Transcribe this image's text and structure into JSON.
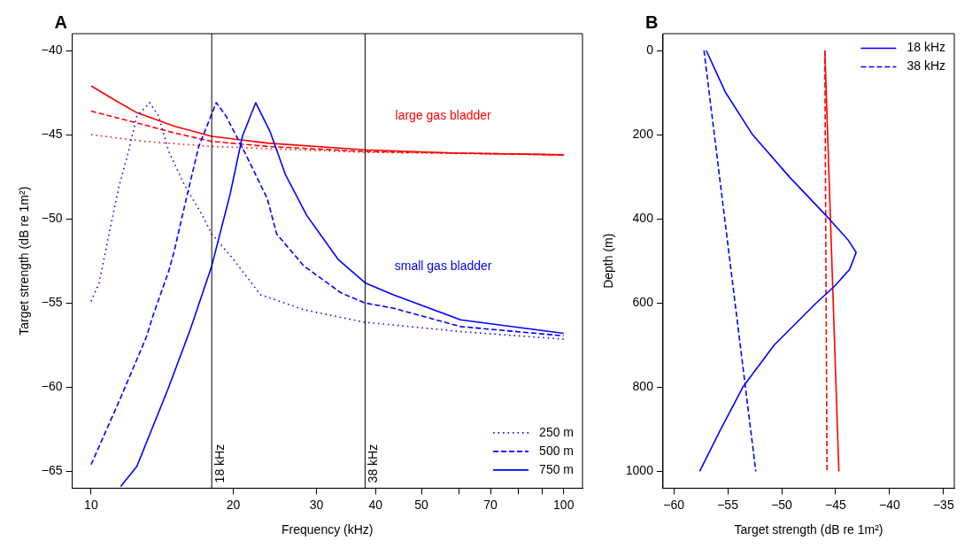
{
  "chart_data": [
    {
      "type": "line",
      "title": "A",
      "xlabel": "Frequency (kHz)",
      "ylabel": "Target strength (dB re 1m²)",
      "log": "x",
      "xlim": [
        9.12,
        109.6
      ],
      "xticks": [
        10,
        20,
        30,
        40,
        50,
        {
          "value": 60,
          "label": null
        },
        70,
        {
          "value": 80,
          "label": null
        },
        {
          "value": 90,
          "label": null
        },
        100
      ],
      "ylim": [
        -66,
        -39
      ],
      "yticks": [
        -65,
        -60,
        -55,
        -50,
        -45,
        -40
      ],
      "grid": false,
      "legend": "bottom right",
      "ref_lines": [
        {
          "axis": "x",
          "value": 18,
          "label": "18 kHz",
          "color": "#000000"
        },
        {
          "axis": "x",
          "value": 38,
          "label": "38 kHz",
          "color": "#000000"
        }
      ],
      "annotations": [
        "large gas bladder",
        "small gas bladder"
      ],
      "series": [
        {
          "name": "250 m",
          "color": "#0000ff",
          "line_style": "dotted",
          "x": [
            10,
            10.4,
            10.95,
            11.45,
            12.0,
            12.5,
            13.3,
            13.9,
            14.6,
            15.7,
            17.2,
            18,
            20,
            22.8,
            28.2,
            38,
            43.5,
            60.5,
            100
          ],
          "values": [
            -54.9,
            -53.8,
            -50.7,
            -48.1,
            -46,
            -43.9,
            -43.1,
            -43.9,
            -46,
            -47.9,
            -49.8,
            -50.9,
            -52.4,
            -54.5,
            -55.4,
            -56.15,
            -56.3,
            -56.7,
            -57.15
          ]
        },
        {
          "name": "500 m",
          "color": "#0000ff",
          "line_style": "dashed",
          "x": [
            10,
            11.6,
            13.1,
            13.5,
            14.6,
            15.0,
            15.9,
            16.9,
            18.4,
            19.3,
            21.1,
            23.6,
            24.7,
            28.2,
            33.8,
            38,
            43.5,
            60.5,
            100
          ],
          "values": [
            -64.6,
            -60.5,
            -57.0,
            -55.8,
            -53.1,
            -51.9,
            -48.8,
            -45.7,
            -43.1,
            -43.9,
            -46,
            -48.8,
            -50.9,
            -52.8,
            -54.4,
            -55.0,
            -55.3,
            -56.4,
            -56.95
          ]
        },
        {
          "name": "750 m",
          "color": "#0000ff",
          "line_style": "solid",
          "x": [
            11.55,
            12.5,
            14.55,
            16.2,
            18,
            19.7,
            20.9,
            22.3,
            23.9,
            25.8,
            28.6,
            33.3,
            38,
            43.5,
            60.5,
            100
          ],
          "values": [
            -65.9,
            -64.7,
            -60.1,
            -56.6,
            -52.8,
            -48.5,
            -45.1,
            -43.1,
            -44.8,
            -47.4,
            -49.8,
            -52.4,
            -53.8,
            -54.5,
            -56.0,
            -56.8
          ]
        },
        {
          "color": "#ff0000",
          "line_style": "dotted",
          "x": [
            10,
            13,
            18,
            38,
            100
          ],
          "values": [
            -45.0,
            -45.4,
            -45.7,
            -46.05,
            -46.2
          ]
        },
        {
          "color": "#ff0000",
          "line_style": "dashed",
          "x": [
            10,
            12.5,
            15,
            18,
            23.6,
            38,
            100
          ],
          "values": [
            -43.6,
            -44.3,
            -44.9,
            -45.4,
            -45.7,
            -46.0,
            -46.2
          ]
        },
        {
          "color": "#ff0000",
          "line_style": "solid",
          "x": [
            10,
            11,
            12.5,
            15,
            18,
            23.6,
            38,
            60,
            100
          ],
          "values": [
            -42.1,
            -42.8,
            -43.7,
            -44.5,
            -45.1,
            -45.5,
            -45.9,
            -46.1,
            -46.2
          ]
        }
      ]
    },
    {
      "type": "line",
      "title": "B",
      "xlabel": "Target strength (dB re 1m²)",
      "ylabel": "Depth (m)",
      "xlim": [
        -61,
        -34
      ],
      "xticks": [
        -60,
        -55,
        -50,
        -45,
        -40,
        -35
      ],
      "ylim": [
        1040,
        -40
      ],
      "yticks": [
        0,
        200,
        400,
        600,
        800,
        1000
      ],
      "grid": false,
      "legend": "top right",
      "series": [
        {
          "name": "18 kHz",
          "color": "#0000ff",
          "line_style": "solid",
          "x": [
            -56.99,
            -55.2,
            -52.7,
            -49.3,
            -45.6,
            -43.85,
            -43.1,
            -43.7,
            -45.1,
            -46.8,
            -50.7,
            -53.6,
            -55.65,
            -57.6
          ],
          "values": [
            0,
            100,
            200,
            300,
            400,
            450,
            480,
            520,
            560,
            600,
            700,
            800,
            900,
            1000
          ]
        },
        {
          "name": "38 kHz",
          "color": "#0000ff",
          "line_style": "dashed",
          "x": [
            -57.2,
            -54.8,
            -52.4
          ],
          "values": [
            0,
            500,
            1000
          ]
        },
        {
          "color": "#ff0000",
          "line_style": "solid",
          "x": [
            -46.0,
            -44.7
          ],
          "values": [
            0,
            1000
          ]
        },
        {
          "color": "#ff0000",
          "line_style": "dashed",
          "x": [
            -46.0,
            -45.8
          ],
          "values": [
            0,
            1000
          ]
        }
      ]
    }
  ]
}
